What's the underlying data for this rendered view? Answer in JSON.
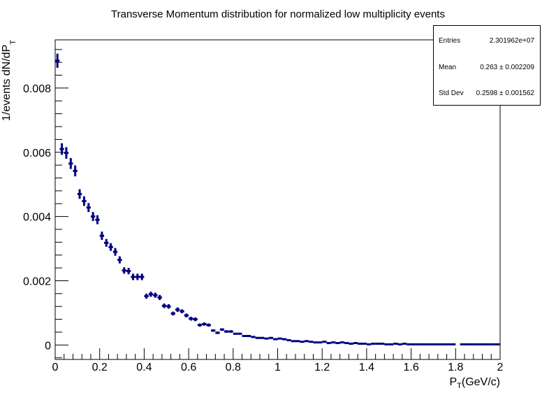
{
  "chart_data": {
    "type": "scatter",
    "title": "Transverse Momentum distribution for normalized low multiplicity events",
    "xlabel": "P_T(GeV/c)",
    "xlabel_main": "P",
    "xlabel_sub": "T",
    "xlabel_rest": "(GeV/c)",
    "ylabel": "1/events dN/dP_T",
    "ylabel_main": "1/events dN/dP",
    "ylabel_sub": "T",
    "xlim": [
      0,
      2
    ],
    "ylim": [
      -0.00045,
      0.0095
    ],
    "xticks": [
      0,
      0.2,
      0.4,
      0.6,
      0.8,
      1,
      1.2,
      1.4,
      1.6,
      1.8,
      2
    ],
    "xtick_labels": [
      "0",
      "0.2",
      "0.4",
      "0.6",
      "0.8",
      "1",
      "1.2",
      "1.4",
      "1.6",
      "1.8",
      "2"
    ],
    "yticks": [
      0,
      0.002,
      0.004,
      0.006,
      0.008
    ],
    "ytick_labels": [
      "0",
      "0.002",
      "0.004",
      "0.006",
      "0.008"
    ],
    "bin_width": 0.02,
    "series": [
      {
        "name": "h_pt",
        "color": "#000080",
        "x": [
          0.01,
          0.03,
          0.05,
          0.07,
          0.09,
          0.11,
          0.13,
          0.15,
          0.17,
          0.19,
          0.21,
          0.23,
          0.25,
          0.27,
          0.29,
          0.31,
          0.33,
          0.35,
          0.37,
          0.39,
          0.41,
          0.43,
          0.45,
          0.47,
          0.49,
          0.51,
          0.53,
          0.55,
          0.57,
          0.59,
          0.61,
          0.63,
          0.65,
          0.67,
          0.69,
          0.71,
          0.73,
          0.75,
          0.77,
          0.79,
          0.81,
          0.83,
          0.85,
          0.87,
          0.89,
          0.91,
          0.93,
          0.95,
          0.97,
          0.99,
          1.01,
          1.03,
          1.05,
          1.07,
          1.09,
          1.11,
          1.13,
          1.15,
          1.17,
          1.19,
          1.21,
          1.23,
          1.25,
          1.27,
          1.29,
          1.31,
          1.33,
          1.35,
          1.37,
          1.39,
          1.41,
          1.43,
          1.45,
          1.47,
          1.49,
          1.51,
          1.53,
          1.55,
          1.57,
          1.59,
          1.61,
          1.63,
          1.65,
          1.67,
          1.69,
          1.71,
          1.73,
          1.75,
          1.77,
          1.79,
          1.83,
          1.85,
          1.87,
          1.89,
          1.91,
          1.93,
          1.95,
          1.97,
          1.99
        ],
        "y": [
          0.00885,
          0.0061,
          0.00598,
          0.00565,
          0.00542,
          0.0047,
          0.00448,
          0.00428,
          0.004,
          0.0039,
          0.0034,
          0.00318,
          0.00305,
          0.0029,
          0.00265,
          0.00232,
          0.0023,
          0.00212,
          0.00212,
          0.00212,
          0.00152,
          0.00158,
          0.00155,
          0.00148,
          0.00122,
          0.0012,
          0.00098,
          0.0011,
          0.00105,
          0.00092,
          0.00082,
          0.0008,
          0.00062,
          0.00065,
          0.00062,
          0.00045,
          0.00038,
          0.00048,
          0.00042,
          0.00042,
          0.00035,
          0.00035,
          0.00028,
          0.00028,
          0.00025,
          0.00022,
          0.00022,
          0.0002,
          0.00022,
          0.00018,
          0.0002,
          0.00018,
          0.00015,
          0.00012,
          0.00012,
          0.0001,
          0.00012,
          0.0001,
          8e-05,
          8e-05,
          0.0001,
          6e-05,
          8e-05,
          6e-05,
          8e-05,
          6e-05,
          4e-05,
          6e-05,
          4e-05,
          4e-05,
          2e-05,
          4e-05,
          4e-05,
          4e-05,
          2e-05,
          2e-05,
          4e-05,
          2e-05,
          4e-05,
          2e-05,
          2e-05,
          2e-05,
          2e-05,
          2e-05,
          2e-05,
          2e-05,
          2e-05,
          2e-05,
          2e-05,
          2e-05,
          2e-05,
          2e-05,
          2e-05,
          2e-05,
          2e-05,
          2e-05,
          2e-05,
          2e-05,
          2e-05
        ],
        "yerr": [
          0.00022,
          0.00018,
          0.00018,
          0.00017,
          0.00017,
          0.00015,
          0.00015,
          0.00014,
          0.00014,
          0.00014,
          0.00013,
          0.00012,
          0.00012,
          0.00012,
          0.00011,
          0.0001,
          0.0001,
          0.0001,
          0.0001,
          0.0001,
          8e-05,
          8e-05,
          8e-05,
          8e-05,
          7e-05,
          7e-05,
          6e-05,
          7e-05,
          6e-05,
          6e-05,
          6e-05,
          6e-05,
          5e-05,
          5e-05,
          5e-05,
          4e-05,
          4e-05,
          4e-05,
          4e-05,
          4e-05,
          3e-05,
          3e-05,
          3e-05,
          3e-05,
          3e-05,
          3e-05,
          3e-05,
          3e-05,
          3e-05,
          2e-05,
          2e-05,
          2e-05,
          2e-05,
          2e-05,
          2e-05,
          2e-05,
          2e-05,
          2e-05,
          2e-05,
          2e-05,
          2e-05,
          2e-05,
          2e-05,
          2e-05,
          2e-05,
          2e-05,
          1e-05,
          2e-05,
          1e-05,
          1e-05,
          1e-05,
          1e-05,
          1e-05,
          1e-05,
          1e-05,
          1e-05,
          1e-05,
          1e-05,
          1e-05,
          1e-05,
          1e-05,
          1e-05,
          1e-05,
          1e-05,
          1e-05,
          1e-05,
          1e-05,
          1e-05,
          1e-05,
          1e-05,
          1e-05,
          1e-05,
          1e-05,
          1e-05,
          1e-05,
          1e-05,
          1e-05,
          1e-05,
          1e-05
        ]
      }
    ],
    "stats": {
      "entries_label": "Entries",
      "entries_value": "2.301962e+07",
      "mean_label": "Mean",
      "mean_value": "0.263 ± 0.002209",
      "stddev_label": "Std Dev",
      "stddev_value": "0.2598 ± 0.001562"
    },
    "legend_position": "top-right",
    "grid": false
  },
  "colors": {
    "marker": "#000080",
    "axis": "#000000"
  }
}
